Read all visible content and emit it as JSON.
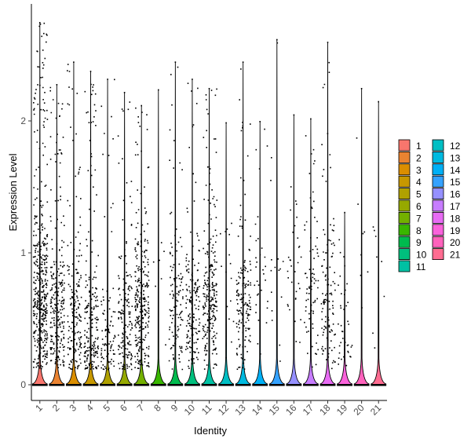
{
  "chart_data": {
    "type": "violin-scatter",
    "title": "",
    "xlabel": "Identity",
    "ylabel": "Expression Level",
    "ylim": [
      -0.12,
      2.8
    ],
    "yticks": [
      0,
      1,
      2
    ],
    "categories": [
      "1",
      "2",
      "3",
      "4",
      "5",
      "6",
      "7",
      "8",
      "9",
      "10",
      "11",
      "12",
      "13",
      "14",
      "15",
      "16",
      "17",
      "18",
      "19",
      "20",
      "21"
    ],
    "max_values": [
      2.75,
      2.28,
      2.45,
      2.38,
      2.32,
      2.22,
      2.12,
      2.24,
      2.45,
      2.32,
      2.25,
      1.99,
      2.45,
      2.0,
      2.62,
      2.05,
      2.02,
      2.6,
      1.31,
      2.25,
      2.15
    ],
    "fraction_expressing": [
      0.55,
      0.3,
      0.22,
      0.25,
      0.12,
      0.2,
      0.35,
      0.01,
      0.15,
      0.2,
      0.3,
      0.02,
      0.2,
      0.04,
      0.02,
      0.04,
      0.1,
      0.15,
      0.05,
      0.01,
      0.01
    ],
    "expression_center": [
      0.65,
      0.55,
      0.5,
      0.35,
      0.25,
      0.45,
      0.55,
      0.8,
      0.6,
      0.55,
      0.65,
      0.8,
      0.55,
      0.8,
      0.8,
      0.8,
      0.7,
      0.6,
      0.45,
      1.0,
      0.7
    ],
    "colors": [
      "#F8766D",
      "#EA8331",
      "#DB8E00",
      "#C79800",
      "#B0A100",
      "#96A900",
      "#73B000",
      "#39B600",
      "#00BB4E",
      "#00BF7D",
      "#00C1A3",
      "#00BFC4",
      "#00BAE0",
      "#00B0F6",
      "#35A2FF",
      "#9590FF",
      "#C77CFF",
      "#E76BF3",
      "#FA62DB",
      "#FF62BC",
      "#FF6C91"
    ],
    "legend": {
      "title": "",
      "position": "right",
      "columns": 2
    }
  }
}
